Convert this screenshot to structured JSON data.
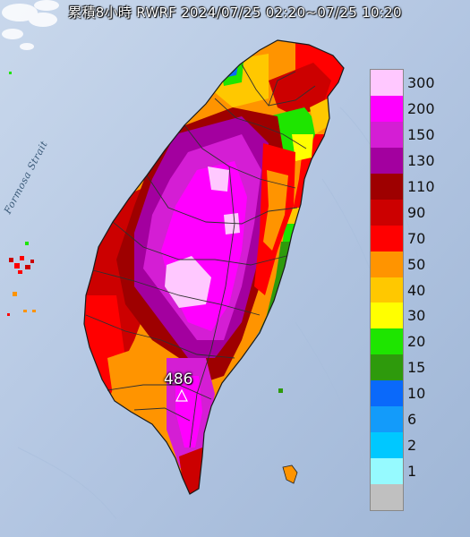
{
  "title": "累積8小時 RWRF 2024/07/25 02:20~07/25 10:20",
  "strait_label": "Formosa Strait",
  "max_marker": {
    "value": "486"
  },
  "legend": {
    "items": [
      {
        "label": "300",
        "color": "#ffc8ff"
      },
      {
        "label": "200",
        "color": "#ff00ff"
      },
      {
        "label": "150",
        "color": "#d41ed4"
      },
      {
        "label": "130",
        "color": "#a3009f"
      },
      {
        "label": "110",
        "color": "#9e0000"
      },
      {
        "label": "90",
        "color": "#cc0000"
      },
      {
        "label": "70",
        "color": "#ff0000"
      },
      {
        "label": "50",
        "color": "#ff9400"
      },
      {
        "label": "40",
        "color": "#ffc800"
      },
      {
        "label": "30",
        "color": "#ffff00"
      },
      {
        "label": "20",
        "color": "#1ee500"
      },
      {
        "label": "15",
        "color": "#2e9a0c"
      },
      {
        "label": "10",
        "color": "#0a69fa"
      },
      {
        "label": "6",
        "color": "#139bfa"
      },
      {
        "label": "2",
        "color": "#00c8ff"
      },
      {
        "label": "1",
        "color": "#96faff"
      },
      {
        "label": "",
        "color": "#c0c0c0"
      }
    ]
  },
  "colors": {
    "sea": "#b4c8e4",
    "land_outline": "#2a2a2a",
    "county_border": "#303030"
  }
}
